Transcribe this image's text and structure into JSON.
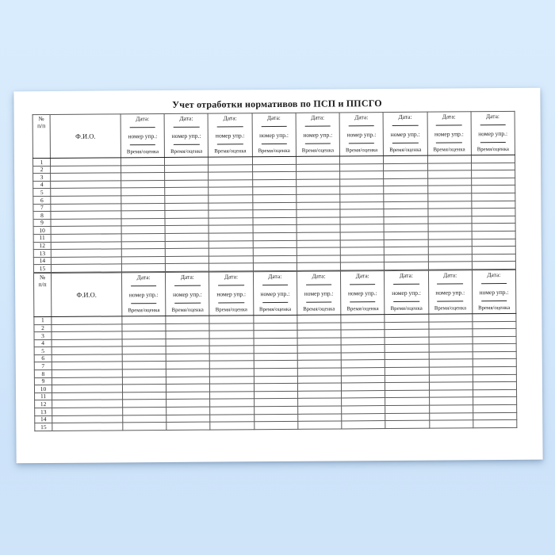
{
  "colors": {
    "background_top": "#d9ecfd",
    "background_bottom": "#cfe4f9",
    "page": "#ffffff",
    "table_border": "#1c1c1c",
    "grid_line": "#5a5a5a",
    "text": "#1a1a1a"
  },
  "document": {
    "title": "Учет отработки нормативов по ПСП и ППСГО",
    "header": {
      "num_label_line1": "№",
      "num_label_line2": "п/п",
      "fio_label": "Ф.И.О.",
      "date_label": "Дата:",
      "exercise_label": "номер упр.:",
      "time_score_label": "Время/оценка",
      "date_column_count": 9
    },
    "sections": [
      {
        "name": "norms-table-1",
        "row_numbers": [
          "1",
          "2",
          "3",
          "4",
          "5",
          "6",
          "7",
          "8",
          "9",
          "10",
          "11",
          "12",
          "13",
          "14",
          "15"
        ]
      },
      {
        "name": "norms-table-2",
        "row_numbers": [
          "1",
          "2",
          "3",
          "4",
          "5",
          "6",
          "7",
          "8",
          "9",
          "10",
          "11",
          "12",
          "13",
          "14",
          "15"
        ]
      }
    ]
  }
}
